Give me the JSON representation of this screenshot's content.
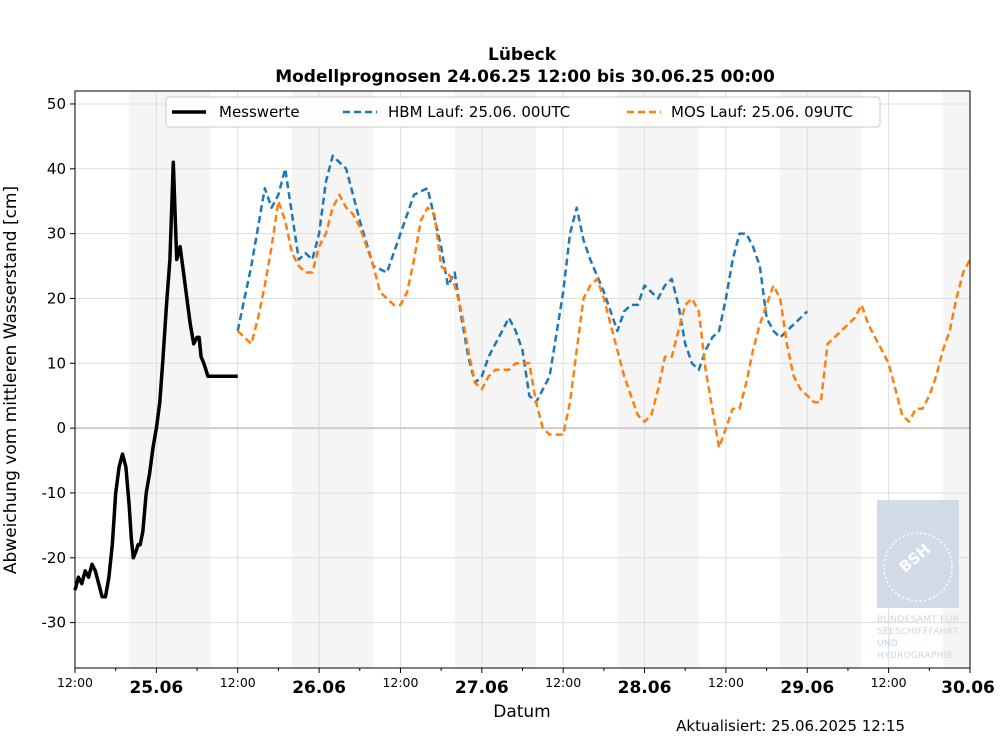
{
  "chart_data": {
    "type": "line",
    "title": "Lübeck",
    "subtitle": "Modellprognosen 24.06.25 12:00 bis 30.06.25 00:00",
    "xlabel": "Datum",
    "ylabel": "Abweichung vom mittleren Wasserstand [cm]",
    "xlim_hours": [
      0,
      132
    ],
    "ylim": [
      -37,
      52
    ],
    "y_ticks": [
      -30,
      -20,
      -10,
      0,
      10,
      20,
      30,
      40,
      50
    ],
    "x_ticks": [
      {
        "hour": 0,
        "label": "12:00",
        "major": false
      },
      {
        "hour": 12,
        "label": "25.06",
        "major": true
      },
      {
        "hour": 24,
        "label": "12:00",
        "major": false
      },
      {
        "hour": 36,
        "label": "26.06",
        "major": true
      },
      {
        "hour": 48,
        "label": "12:00",
        "major": false
      },
      {
        "hour": 60,
        "label": "27.06",
        "major": true
      },
      {
        "hour": 72,
        "label": "12:00",
        "major": false
      },
      {
        "hour": 84,
        "label": "28.06",
        "major": true
      },
      {
        "hour": 96,
        "label": "12:00",
        "major": false
      },
      {
        "hour": 108,
        "label": "29.06",
        "major": true
      },
      {
        "hour": 120,
        "label": "12:00",
        "major": false
      },
      {
        "hour": 132,
        "label": "30.06",
        "major": true
      }
    ],
    "night_bands_hours": [
      [
        8,
        20
      ],
      [
        32,
        44
      ],
      [
        56,
        68
      ],
      [
        80,
        92
      ],
      [
        104,
        116
      ],
      [
        128,
        132
      ]
    ],
    "grid": true,
    "legend_position": "top-center",
    "zero_line": true,
    "series": [
      {
        "name": "Messwerte",
        "color": "#000000",
        "style": "solid",
        "x": [
          0,
          0.5,
          1,
          1.5,
          2,
          2.5,
          3,
          3.5,
          4,
          4.5,
          5,
          5.5,
          6,
          6.5,
          7,
          7.5,
          8,
          8.3,
          8.6,
          9,
          9.3,
          9.6,
          10,
          10.5,
          11,
          11.5,
          12,
          12.5,
          13,
          13.5,
          14,
          14.5,
          15,
          15.5,
          16,
          16.5,
          17,
          17.5,
          18,
          18.3,
          18.6,
          19,
          19.3,
          19.6,
          20,
          20.5,
          21,
          21.5,
          22,
          22.5,
          23,
          23.5,
          24
        ],
        "y": [
          -25,
          -23,
          -24,
          -22,
          -23,
          -21,
          -22,
          -24,
          -26,
          -26,
          -23,
          -18,
          -10,
          -6,
          -4,
          -6,
          -12,
          -17,
          -20,
          -19,
          -18,
          -18,
          -16,
          -10,
          -7,
          -3,
          0,
          4,
          11,
          19,
          26,
          41,
          26,
          28,
          24,
          20,
          16,
          13,
          14,
          14,
          11,
          10,
          9,
          8,
          8,
          8,
          8,
          8,
          8,
          8,
          8,
          8,
          8
        ]
      },
      {
        "name": "HBM Lauf: 25.06. 00UTC",
        "color": "#1f77b4",
        "style": "dashed",
        "x": [
          24,
          26,
          28,
          29,
          30,
          31,
          32,
          33,
          34,
          35,
          36,
          37,
          38,
          40,
          42,
          44,
          46,
          48,
          50,
          52,
          54,
          55,
          56,
          57,
          58,
          59,
          60,
          61,
          62,
          63,
          64,
          65,
          66,
          67,
          68,
          70,
          72,
          73,
          74,
          75,
          76,
          78,
          80,
          81,
          82,
          83,
          84,
          85,
          86,
          87,
          88,
          89,
          90,
          91,
          92,
          93,
          94,
          95,
          96,
          97,
          98,
          99,
          100,
          101,
          102,
          103,
          104,
          105,
          106,
          107,
          108
        ],
        "y": [
          15,
          25,
          37,
          34,
          36,
          40,
          33,
          26,
          27,
          26,
          30,
          38,
          42,
          40,
          32,
          25,
          24,
          30,
          36,
          37,
          28,
          22,
          24,
          17,
          11,
          7,
          8,
          11,
          13,
          15,
          17,
          15,
          12,
          5,
          4,
          8,
          21,
          30,
          34,
          29,
          26,
          21,
          15,
          18,
          19,
          19,
          22,
          21,
          20,
          22,
          23,
          19,
          13,
          10,
          9,
          12,
          14,
          15,
          20,
          26,
          30,
          30,
          28,
          25,
          17,
          15,
          14,
          15,
          16,
          17,
          18
        ]
      },
      {
        "name": "MOS Lauf: 25.06. 09UTC",
        "color": "#ff7f0e",
        "style": "dashed",
        "x": [
          24,
          25,
          26,
          27,
          28,
          29,
          30,
          31,
          32,
          33,
          34,
          35,
          36,
          37,
          38,
          39,
          40,
          41,
          42,
          43,
          44,
          45,
          46,
          47,
          48,
          49,
          50,
          51,
          52,
          53,
          54,
          55,
          56,
          57,
          58,
          59,
          60,
          61,
          62,
          63,
          64,
          65,
          66,
          67,
          68,
          69,
          70,
          71,
          72,
          73,
          74,
          75,
          76,
          77,
          78,
          79,
          80,
          81,
          82,
          83,
          84,
          85,
          86,
          87,
          88,
          89,
          90,
          91,
          92,
          93,
          94,
          95,
          96,
          97,
          98,
          99,
          100,
          101,
          102,
          103,
          104,
          105,
          106,
          107,
          108,
          109,
          110,
          111,
          112,
          113,
          114,
          115,
          116,
          117,
          118,
          119,
          120,
          121,
          122,
          123,
          124,
          125,
          126,
          127,
          128,
          129,
          130,
          131,
          132
        ],
        "y": [
          15,
          14,
          13,
          17,
          22,
          28,
          35,
          32,
          27,
          25,
          24,
          24,
          28,
          30,
          34,
          36,
          34,
          33,
          31,
          28,
          25,
          21,
          20,
          19,
          19,
          21,
          26,
          32,
          34,
          33,
          25,
          24,
          22,
          18,
          12,
          7,
          6,
          8,
          9,
          9,
          9,
          10,
          10,
          10,
          4,
          0,
          -1,
          -1,
          -1,
          4,
          12,
          20,
          22,
          23,
          20,
          16,
          12,
          8,
          5,
          2,
          1,
          2,
          6,
          11,
          11,
          15,
          19,
          20,
          18,
          9,
          3,
          -3,
          0,
          3,
          3,
          7,
          12,
          16,
          19,
          22,
          20,
          13,
          8,
          6,
          5,
          4,
          4,
          13,
          14,
          15,
          16,
          17,
          19,
          16,
          14,
          12,
          10,
          6,
          2,
          1,
          3,
          3,
          5,
          8,
          12,
          15,
          20,
          24,
          26
        ]
      }
    ],
    "updated": "Aktualisiert: 25.06.2025 12:15"
  },
  "logo": {
    "text_lines": [
      "BUNDESAMT FÜR",
      "SEESCHIFFFAHRT",
      "UND",
      "HYDROGRAPHIE"
    ],
    "emblem": "BSH",
    "color": "#c9d6e3"
  }
}
